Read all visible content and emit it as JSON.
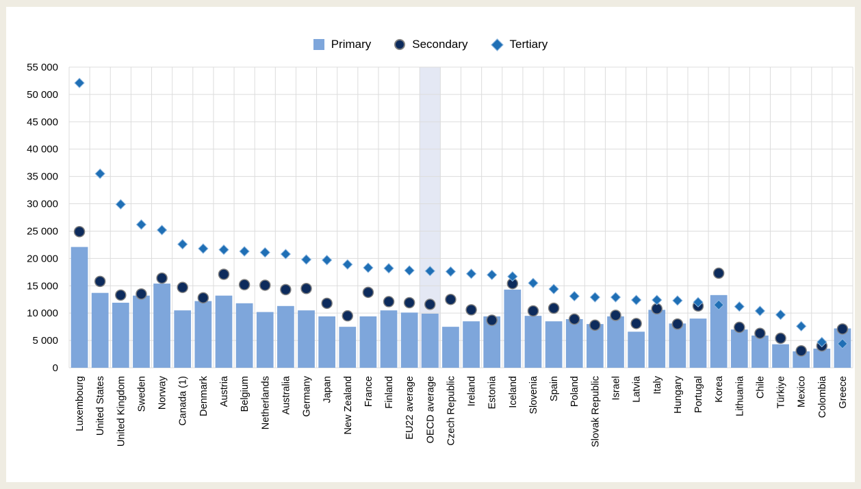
{
  "colors": {
    "primary": "#7ea6db",
    "secondary_fill": "#0d2b5c",
    "secondary_stroke": "#7f7f7f",
    "tertiary_fill": "#1f6fb5",
    "tertiary_stroke": "#8fb8e0",
    "highlight": "#e4e8f4",
    "grid": "#dcdcdc",
    "background": "#efece2"
  },
  "legend": {
    "primary_label": "Primary",
    "secondary_label": "Secondary",
    "tertiary_label": "Tertiary"
  },
  "chart_data": {
    "type": "bar",
    "title": "",
    "xlabel": "",
    "ylabel": "",
    "ylim": [
      0,
      55000
    ],
    "y_ticks": [
      0,
      5000,
      10000,
      15000,
      20000,
      25000,
      30000,
      35000,
      40000,
      45000,
      50000,
      55000
    ],
    "y_tick_labels": [
      "0",
      "5 000",
      "10 000",
      "15 000",
      "20 000",
      "25 000",
      "30 000",
      "35 000",
      "40 000",
      "45 000",
      "50 000",
      "55 000"
    ],
    "grid": true,
    "legend_position": "top-center",
    "highlighted_category": "OECD average",
    "categories": [
      "Luxembourg",
      "United States",
      "United Kingdom",
      "Sweden",
      "Norway",
      "Canada (1)",
      "Denmark",
      "Austria",
      "Belgium",
      "Netherlands",
      "Australia",
      "Germany",
      "Japan",
      "New Zealand",
      "France",
      "Finland",
      "EU22 average",
      "OECD average",
      "Czech Republic",
      "Ireland",
      "Estonia",
      "Iceland",
      "Slovenia",
      "Spain",
      "Poland",
      "Slovak Republic",
      "Israel",
      "Latvia",
      "Italy",
      "Hungary",
      "Portugal",
      "Korea",
      "Lithuania",
      "Chile",
      "Türkiye",
      "Mexico",
      "Colombia",
      "Greece"
    ],
    "series": [
      {
        "name": "Primary",
        "type": "bar",
        "values": [
          22100,
          13700,
          11900,
          13200,
          15400,
          10500,
          12200,
          13200,
          11800,
          10200,
          11300,
          10500,
          9400,
          7500,
          9400,
          10500,
          10100,
          9900,
          7500,
          8500,
          9400,
          14300,
          9500,
          8500,
          8900,
          8000,
          9400,
          6600,
          10600,
          8100,
          9000,
          13300,
          7000,
          5900,
          4300,
          3000,
          3500,
          7200
        ]
      },
      {
        "name": "Secondary",
        "type": "marker",
        "values": [
          24900,
          15800,
          13300,
          13500,
          16400,
          14700,
          12800,
          17100,
          15200,
          15100,
          14300,
          14500,
          11800,
          9500,
          13800,
          12100,
          11900,
          11600,
          12500,
          10600,
          8700,
          15400,
          10400,
          10900,
          8900,
          7800,
          9600,
          8100,
          10800,
          8000,
          11300,
          17300,
          7400,
          6300,
          5400,
          3100,
          4000,
          7100
        ]
      },
      {
        "name": "Tertiary",
        "type": "marker",
        "values": [
          52100,
          35500,
          29900,
          26200,
          25200,
          22600,
          21800,
          21600,
          21300,
          21100,
          20800,
          19800,
          19700,
          18900,
          18300,
          18200,
          17800,
          17700,
          17600,
          17200,
          17000,
          16700,
          15500,
          14400,
          13100,
          12900,
          12900,
          12400,
          12400,
          12300,
          12000,
          11500,
          11200,
          10400,
          9700,
          7600,
          4700,
          4400
        ]
      }
    ]
  }
}
